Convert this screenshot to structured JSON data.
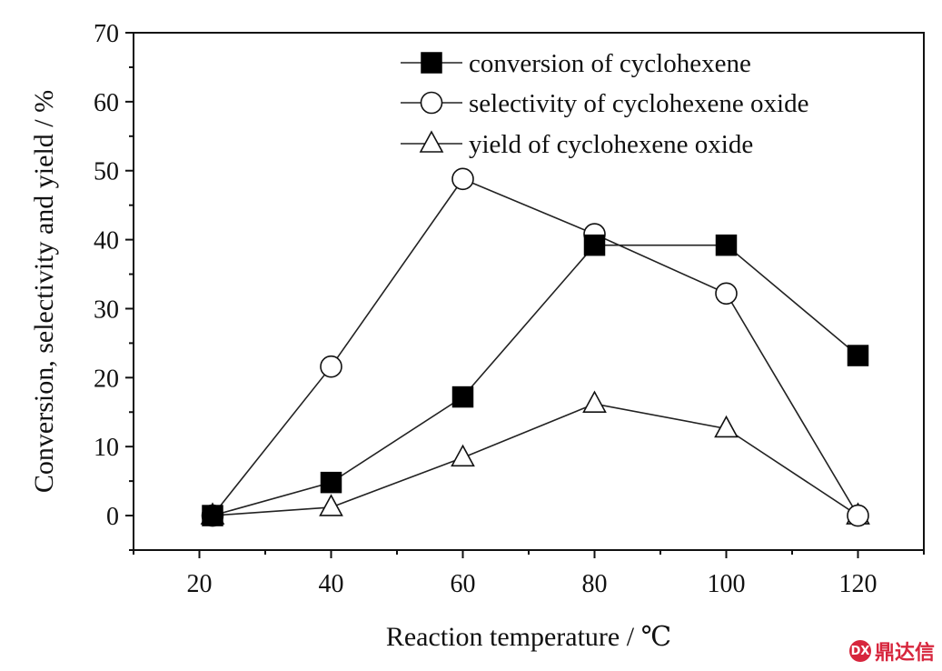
{
  "chart_data": {
    "type": "line",
    "xlabel": "Reaction temperature / ℃",
    "ylabel": "Conversion, selectivity and yield / %",
    "xlim": [
      10,
      130
    ],
    "ylim": [
      -5,
      70
    ],
    "xticks": [
      20,
      40,
      60,
      80,
      100,
      120
    ],
    "yticks": [
      0,
      10,
      20,
      30,
      40,
      50,
      60,
      70
    ],
    "grid": false,
    "legend_position": "top-right",
    "series": [
      {
        "name": "conversion of cyclohexene",
        "marker": "filled-square",
        "x": [
          22,
          40,
          60,
          80,
          100,
          120
        ],
        "y": [
          0,
          4.8,
          17.2,
          39.2,
          39.2,
          23.2
        ]
      },
      {
        "name": "selectivity of cyclohexene oxide",
        "marker": "open-circle",
        "x": [
          22,
          40,
          60,
          80,
          100,
          120
        ],
        "y": [
          0,
          21.6,
          48.8,
          40.8,
          32.2,
          0
        ]
      },
      {
        "name": "yield of cyclohexene oxide",
        "marker": "open-triangle",
        "x": [
          22,
          40,
          60,
          80,
          100,
          120
        ],
        "y": [
          0,
          1.2,
          8.4,
          16.2,
          12.6,
          0
        ]
      }
    ]
  },
  "watermark": {
    "text": "鼎达信",
    "logo_text": "DX"
  }
}
